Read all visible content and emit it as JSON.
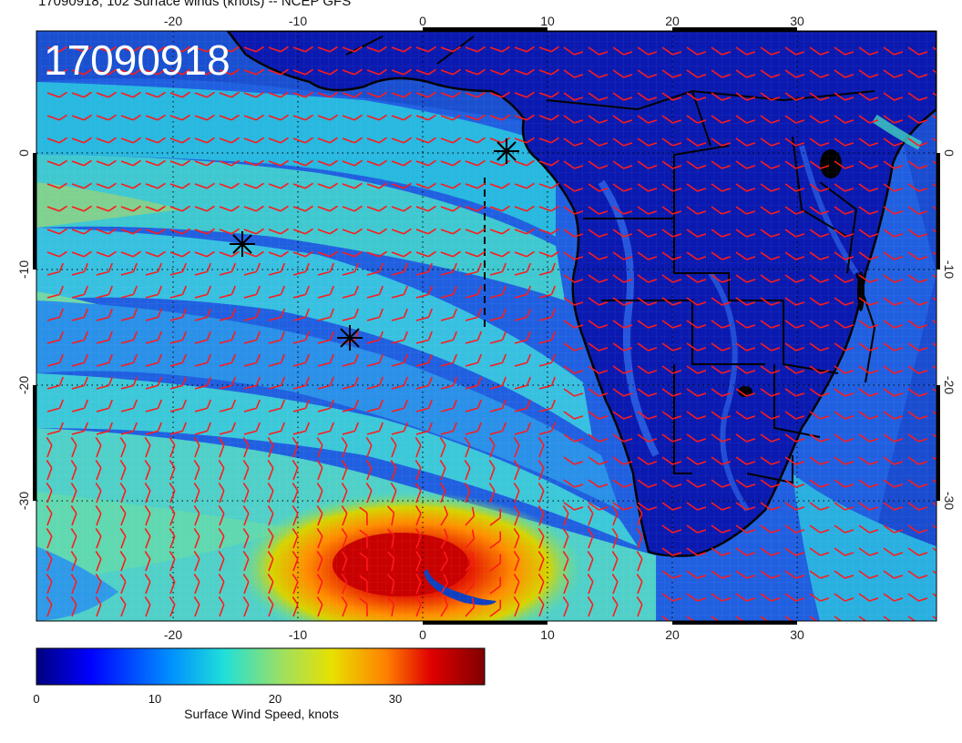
{
  "header": {
    "title": "17090918, 102 Surface winds (knots) -- NCEP GFS"
  },
  "map": {
    "stamp": "17090918",
    "lon_ticks": [
      "-20",
      "-10",
      "0",
      "10",
      "20",
      "30"
    ],
    "lat_ticks": [
      "0",
      "-10",
      "-20",
      "-30"
    ],
    "barb_color": "#ff1a1a"
  },
  "colorbar": {
    "title": "Surface Wind Speed, knots",
    "ticks": [
      "0",
      "10",
      "20",
      "30"
    ]
  }
}
